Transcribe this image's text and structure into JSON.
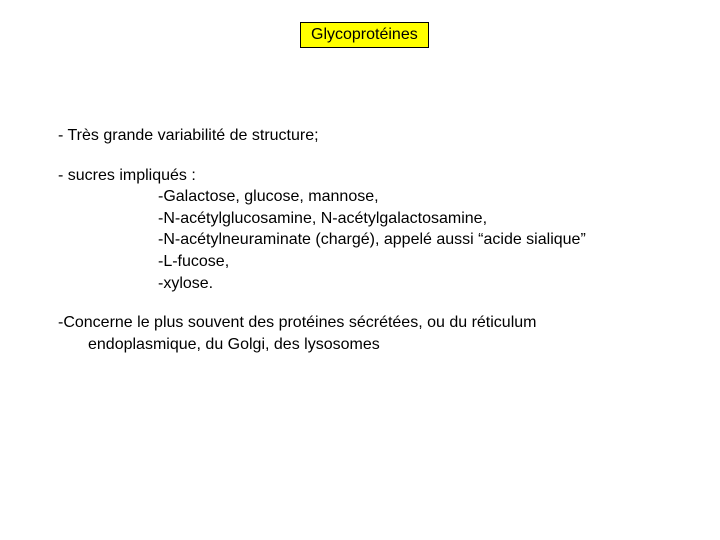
{
  "title": "Glycoprotéines",
  "p1": "- Très grande variabilité de structure;",
  "p2_lead": "- sucres impliqués :",
  "p2_items": [
    "-Galactose, glucose, mannose,",
    "-N-acétylglucosamine, N-acétylgalactosamine,",
    "-N-acétylneuraminate (chargé), appelé aussi “acide sialique”",
    "-L-fucose,",
    "-xylose."
  ],
  "p3_l1": "-Concerne le plus souvent des protéines sécrétées, ou du réticulum",
  "p3_l2": "endoplasmique, du Golgi, des lysosomes",
  "colors": {
    "title_bg": "#ffff00",
    "title_border": "#000000",
    "text": "#000000",
    "background": "#ffffff"
  },
  "fontsize_title": 16,
  "fontsize_body": 16
}
